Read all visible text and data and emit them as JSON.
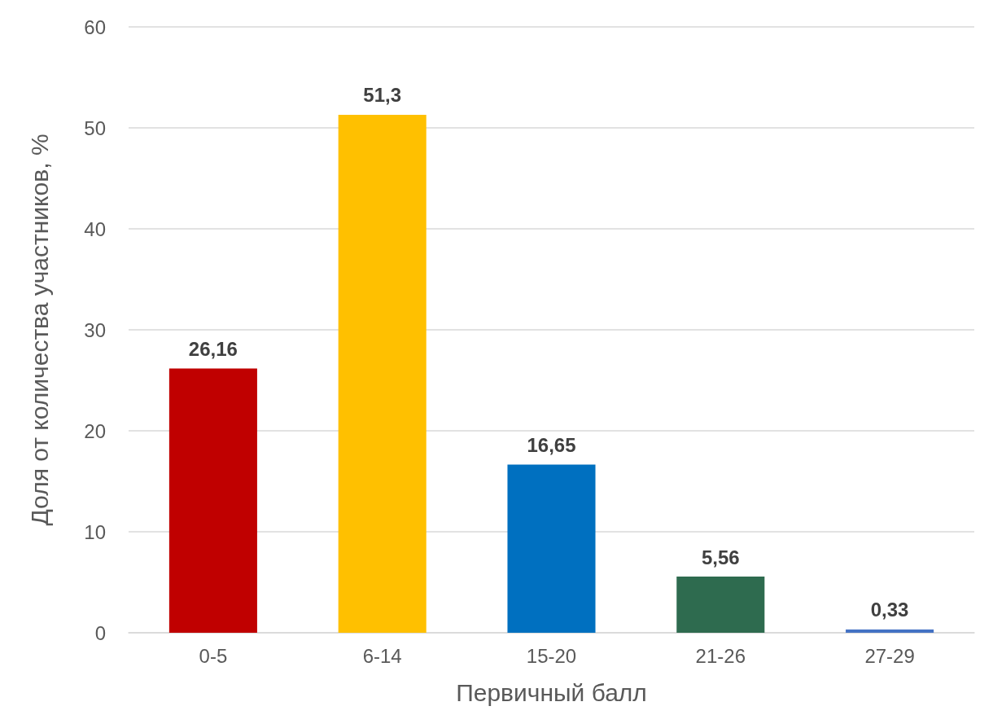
{
  "chart_data": {
    "type": "bar",
    "xlabel": "Первичный балл",
    "ylabel": "Доля от количества участников, %",
    "categories": [
      "0-5",
      "6-14",
      "15-20",
      "21-26",
      "27-29"
    ],
    "values": [
      26.16,
      51.3,
      16.65,
      5.56,
      0.33
    ],
    "colors": [
      "#c00000",
      "#ffc000",
      "#0070c0",
      "#2e6b4f",
      "#4472c4"
    ],
    "value_labels": [
      "26,16",
      "51,3",
      "16,65",
      "5,56",
      "0,33"
    ],
    "ylim": [
      0,
      60
    ],
    "yticks": [
      0,
      10,
      20,
      30,
      40,
      50,
      60
    ],
    "grid": "y"
  }
}
